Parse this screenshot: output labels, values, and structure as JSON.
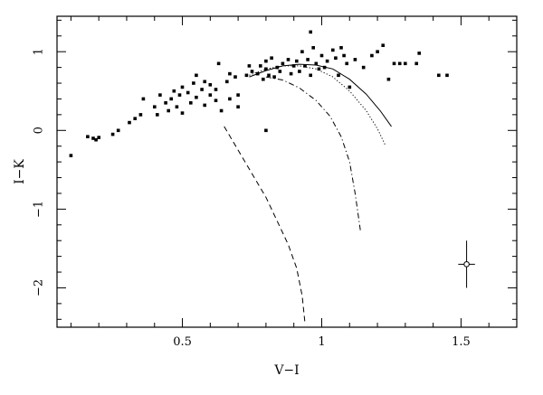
{
  "chart_data": {
    "type": "scatter",
    "xlabel": "V−I",
    "ylabel": "I−K",
    "xlim": [
      0.05,
      1.7
    ],
    "ylim": [
      -2.5,
      1.45
    ],
    "x_ticks": [
      0.5,
      1,
      1.5
    ],
    "x_tick_labels": [
      "0.5",
      "1",
      "1.5"
    ],
    "y_ticks": [
      1,
      0,
      -1,
      -2
    ],
    "y_tick_labels": [
      "1",
      "0",
      "−1",
      "−2"
    ],
    "grid": false,
    "points": [
      [
        0.1,
        -0.32
      ],
      [
        0.16,
        -0.08
      ],
      [
        0.18,
        -0.1
      ],
      [
        0.19,
        -0.12
      ],
      [
        0.2,
        -0.09
      ],
      [
        0.25,
        -0.05
      ],
      [
        0.27,
        0.0
      ],
      [
        0.31,
        0.1
      ],
      [
        0.33,
        0.15
      ],
      [
        0.35,
        0.2
      ],
      [
        0.36,
        0.4
      ],
      [
        0.4,
        0.3
      ],
      [
        0.41,
        0.2
      ],
      [
        0.42,
        0.45
      ],
      [
        0.44,
        0.35
      ],
      [
        0.45,
        0.25
      ],
      [
        0.46,
        0.4
      ],
      [
        0.47,
        0.5
      ],
      [
        0.48,
        0.3
      ],
      [
        0.49,
        0.45
      ],
      [
        0.5,
        0.22
      ],
      [
        0.5,
        0.55
      ],
      [
        0.52,
        0.48
      ],
      [
        0.53,
        0.35
      ],
      [
        0.54,
        0.6
      ],
      [
        0.55,
        0.42
      ],
      [
        0.55,
        0.7
      ],
      [
        0.57,
        0.52
      ],
      [
        0.58,
        0.32
      ],
      [
        0.58,
        0.62
      ],
      [
        0.6,
        0.45
      ],
      [
        0.6,
        0.58
      ],
      [
        0.62,
        0.38
      ],
      [
        0.62,
        0.52
      ],
      [
        0.63,
        0.85
      ],
      [
        0.64,
        0.25
      ],
      [
        0.66,
        0.62
      ],
      [
        0.67,
        0.4
      ],
      [
        0.67,
        0.72
      ],
      [
        0.69,
        0.68
      ],
      [
        0.7,
        0.45
      ],
      [
        0.7,
        0.3
      ],
      [
        0.73,
        0.7
      ],
      [
        0.74,
        0.82
      ],
      [
        0.75,
        0.75
      ],
      [
        0.77,
        0.72
      ],
      [
        0.78,
        0.82
      ],
      [
        0.79,
        0.65
      ],
      [
        0.8,
        0.78
      ],
      [
        0.8,
        0.88
      ],
      [
        0.81,
        0.7
      ],
      [
        0.82,
        0.92
      ],
      [
        0.83,
        0.68
      ],
      [
        0.84,
        0.8
      ],
      [
        0.85,
        0.75
      ],
      [
        0.86,
        0.85
      ],
      [
        0.88,
        0.9
      ],
      [
        0.89,
        0.72
      ],
      [
        0.9,
        0.82
      ],
      [
        0.91,
        0.88
      ],
      [
        0.92,
        0.75
      ],
      [
        0.93,
        1.0
      ],
      [
        0.94,
        0.82
      ],
      [
        0.95,
        0.9
      ],
      [
        0.96,
        0.7
      ],
      [
        0.97,
        1.05
      ],
      [
        0.98,
        0.85
      ],
      [
        0.99,
        0.78
      ],
      [
        1.0,
        0.95
      ],
      [
        1.01,
        0.8
      ],
      [
        1.02,
        0.88
      ],
      [
        1.04,
        1.02
      ],
      [
        1.05,
        0.92
      ],
      [
        1.06,
        0.7
      ],
      [
        1.07,
        1.05
      ],
      [
        1.08,
        0.95
      ],
      [
        1.09,
        0.85
      ],
      [
        1.1,
        0.55
      ],
      [
        1.12,
        0.9
      ],
      [
        1.15,
        0.8
      ],
      [
        1.18,
        0.95
      ],
      [
        1.2,
        1.0
      ],
      [
        1.22,
        1.08
      ],
      [
        1.24,
        0.65
      ],
      [
        1.26,
        0.85
      ],
      [
        1.28,
        0.85
      ],
      [
        1.3,
        0.85
      ],
      [
        1.34,
        0.85
      ],
      [
        1.35,
        0.98
      ],
      [
        1.42,
        0.7
      ],
      [
        1.45,
        0.7
      ],
      [
        0.96,
        1.25
      ],
      [
        0.8,
        0.0
      ]
    ],
    "curves": [
      {
        "style": "solid",
        "points": [
          [
            0.74,
            0.68
          ],
          [
            0.8,
            0.76
          ],
          [
            0.86,
            0.82
          ],
          [
            0.92,
            0.84
          ],
          [
            0.98,
            0.83
          ],
          [
            1.04,
            0.78
          ],
          [
            1.1,
            0.65
          ],
          [
            1.16,
            0.46
          ],
          [
            1.21,
            0.25
          ],
          [
            1.25,
            0.05
          ]
        ]
      },
      {
        "style": "dotted",
        "points": [
          [
            0.74,
            0.7
          ],
          [
            0.8,
            0.78
          ],
          [
            0.86,
            0.82
          ],
          [
            0.92,
            0.82
          ],
          [
            0.98,
            0.78
          ],
          [
            1.04,
            0.68
          ],
          [
            1.1,
            0.5
          ],
          [
            1.16,
            0.25
          ],
          [
            1.2,
            0.02
          ],
          [
            1.23,
            -0.2
          ]
        ]
      },
      {
        "style": "dash-dot",
        "points": [
          [
            0.8,
            0.68
          ],
          [
            0.86,
            0.64
          ],
          [
            0.92,
            0.54
          ],
          [
            0.98,
            0.38
          ],
          [
            1.03,
            0.18
          ],
          [
            1.07,
            -0.08
          ],
          [
            1.1,
            -0.4
          ],
          [
            1.12,
            -0.8
          ],
          [
            1.14,
            -1.3
          ]
        ]
      },
      {
        "style": "dashed",
        "points": [
          [
            0.65,
            0.05
          ],
          [
            0.7,
            -0.25
          ],
          [
            0.75,
            -0.55
          ],
          [
            0.8,
            -0.85
          ],
          [
            0.84,
            -1.15
          ],
          [
            0.88,
            -1.45
          ],
          [
            0.91,
            -1.75
          ],
          [
            0.93,
            -2.1
          ],
          [
            0.94,
            -2.45
          ]
        ]
      }
    ],
    "error_bar": {
      "x": 1.52,
      "y": -1.7,
      "x_err": 0.03,
      "y_err": 0.3
    }
  }
}
